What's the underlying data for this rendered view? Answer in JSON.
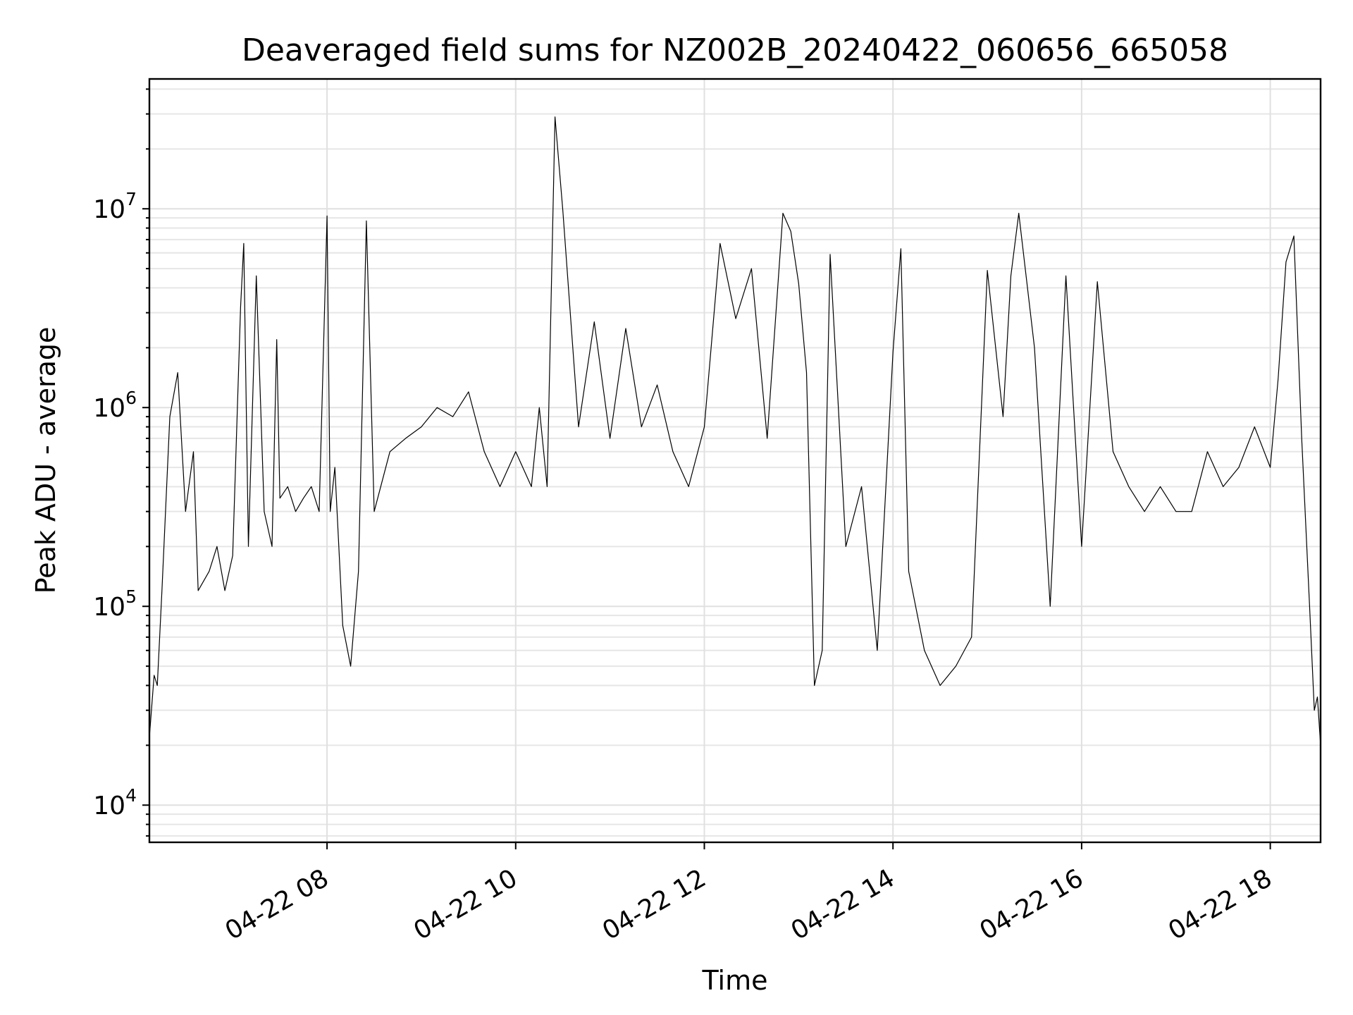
{
  "chart_data": {
    "type": "line",
    "title": "Deaveraged field sums for NZ002B_20240422_060656_665058",
    "xlabel": "Time",
    "ylabel": "Peak ADU - average",
    "y_scale": "log",
    "ylim": [
      6500,
      45000000
    ],
    "xlim": [
      "2024-04-22 06:07",
      "2024-04-22 18:32"
    ],
    "grid": true,
    "x_ticks": [
      {
        "label": "04-22 08",
        "time": "2024-04-22 08:00"
      },
      {
        "label": "04-22 10",
        "time": "2024-04-22 10:00"
      },
      {
        "label": "04-22 12",
        "time": "2024-04-22 12:00"
      },
      {
        "label": "04-22 14",
        "time": "2024-04-22 14:00"
      },
      {
        "label": "04-22 16",
        "time": "2024-04-22 16:00"
      },
      {
        "label": "04-22 18",
        "time": "2024-04-22 18:00"
      }
    ],
    "y_ticks": [
      {
        "base": "10",
        "exp": "4",
        "value": 10000
      },
      {
        "base": "10",
        "exp": "5",
        "value": 100000
      },
      {
        "base": "10",
        "exp": "6",
        "value": 1000000
      },
      {
        "base": "10",
        "exp": "7",
        "value": 10000000
      }
    ],
    "series": [
      {
        "color": "#000000",
        "x": [
          "06:07",
          "06:10",
          "06:12",
          "06:15",
          "06:20",
          "06:25",
          "06:30",
          "06:35",
          "06:38",
          "06:45",
          "06:50",
          "06:55",
          "07:00",
          "07:05",
          "07:07",
          "07:10",
          "07:15",
          "07:20",
          "07:25",
          "07:28",
          "07:30",
          "07:35",
          "07:40",
          "07:45",
          "07:50",
          "07:55",
          "08:00",
          "08:02",
          "08:05",
          "08:10",
          "08:15",
          "08:20",
          "08:25",
          "08:30",
          "08:40",
          "08:50",
          "09:00",
          "09:10",
          "09:20",
          "09:30",
          "09:40",
          "09:50",
          "10:00",
          "10:10",
          "10:15",
          "10:20",
          "10:25",
          "10:30",
          "10:40",
          "10:50",
          "11:00",
          "11:10",
          "11:20",
          "11:30",
          "11:40",
          "11:50",
          "12:00",
          "12:10",
          "12:20",
          "12:30",
          "12:40",
          "12:50",
          "12:55",
          "13:00",
          "13:05",
          "13:10",
          "13:15",
          "13:20",
          "13:30",
          "13:40",
          "13:50",
          "14:00",
          "14:05",
          "14:10",
          "14:20",
          "14:30",
          "14:40",
          "14:50",
          "15:00",
          "15:10",
          "15:15",
          "15:20",
          "15:30",
          "15:40",
          "15:50",
          "16:00",
          "16:10",
          "16:20",
          "16:30",
          "16:40",
          "16:50",
          "17:00",
          "17:10",
          "17:20",
          "17:30",
          "17:40",
          "17:50",
          "18:00",
          "18:05",
          "18:10",
          "18:15",
          "18:20",
          "18:25",
          "18:28",
          "18:30",
          "18:32"
        ],
        "y": [
          22000,
          45000,
          40000,
          120000,
          900000,
          1500000,
          300000,
          600000,
          120000,
          150000,
          200000,
          120000,
          180000,
          3200000,
          6700000,
          200000,
          4600000,
          300000,
          200000,
          2200000,
          350000,
          400000,
          300000,
          350000,
          400000,
          300000,
          9200000,
          300000,
          500000,
          80000,
          50000,
          150000,
          8700000,
          300000,
          600000,
          700000,
          800000,
          1000000,
          900000,
          1200000,
          600000,
          400000,
          600000,
          400000,
          1000000,
          400000,
          29000000,
          9800000,
          800000,
          2700000,
          700000,
          2500000,
          800000,
          1300000,
          600000,
          400000,
          800000,
          6700000,
          2800000,
          5000000,
          700000,
          9500000,
          7700000,
          4200000,
          1500000,
          40000,
          60000,
          5900000,
          200000,
          400000,
          60000,
          1900000,
          6300000,
          150000,
          60000,
          40000,
          50000,
          70000,
          4900000,
          900000,
          4600000,
          9500000,
          2000000,
          100000,
          4600000,
          200000,
          4300000,
          600000,
          400000,
          300000,
          400000,
          300000,
          300000,
          600000,
          400000,
          500000,
          800000,
          500000,
          1400000,
          5400000,
          7300000,
          700000,
          100000,
          30000,
          35000,
          20000
        ]
      }
    ]
  }
}
